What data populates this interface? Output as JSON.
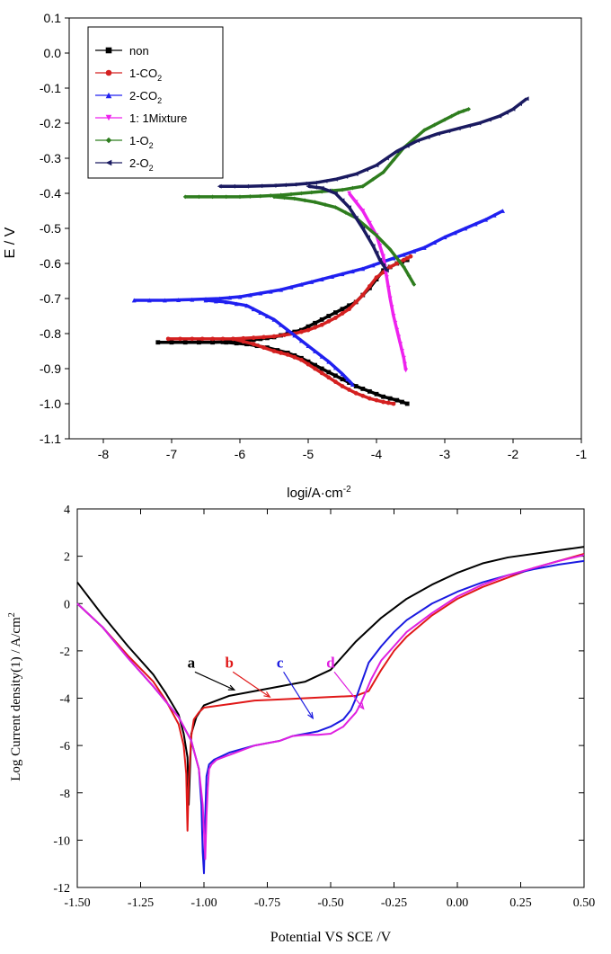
{
  "chart_data": [
    {
      "type": "line",
      "xlabel": "logi/A·cm",
      "xlabel_sup": "-2",
      "ylabel": "E / V",
      "xlim": [
        -8.5,
        -1
      ],
      "ylim": [
        -1.1,
        0.1
      ],
      "xticks": [
        "-8",
        "-7",
        "-6",
        "-5",
        "-4",
        "-3",
        "-2",
        "-1"
      ],
      "yticks": [
        "0.1",
        "0.0",
        "-0.1",
        "-0.2",
        "-0.3",
        "-0.4",
        "-0.5",
        "-0.6",
        "-0.7",
        "-0.8",
        "-0.9",
        "-1.0",
        "-1.1"
      ],
      "legend_position": "top-left",
      "series": [
        {
          "name": "non",
          "sub": "",
          "color": "#000000",
          "marker": "square",
          "x": [
            -7.2,
            -6.8,
            -6.4,
            -6.1,
            -5.9,
            -5.7,
            -5.5,
            -5.3,
            -5.1,
            -4.9,
            -4.7,
            -4.5,
            -4.3,
            -4.1,
            -3.9,
            -3.7,
            -3.55
          ],
          "y": [
            -0.825,
            -0.825,
            -0.825,
            -0.823,
            -0.82,
            -0.815,
            -0.81,
            -0.8,
            -0.79,
            -0.77,
            -0.75,
            -0.73,
            -0.71,
            -0.67,
            -0.62,
            -0.6,
            -0.59
          ],
          "x2": [
            -6.2,
            -5.9,
            -5.6,
            -5.3,
            -5.1,
            -4.9,
            -4.7,
            -4.5,
            -4.3,
            -4.1,
            -3.9,
            -3.7,
            -3.55
          ],
          "y2": [
            -0.825,
            -0.83,
            -0.84,
            -0.855,
            -0.87,
            -0.89,
            -0.91,
            -0.93,
            -0.95,
            -0.965,
            -0.98,
            -0.99,
            -1.0
          ]
        },
        {
          "name": "1-CO",
          "sub": "2",
          "color": "#d42020",
          "marker": "circle",
          "x": [
            -7.05,
            -6.7,
            -6.4,
            -6.1,
            -5.8,
            -5.5,
            -5.2,
            -5.0,
            -4.8,
            -4.6,
            -4.4,
            -4.2,
            -4.0,
            -3.8,
            -3.6,
            -3.5
          ],
          "y": [
            -0.815,
            -0.815,
            -0.815,
            -0.815,
            -0.812,
            -0.808,
            -0.8,
            -0.79,
            -0.775,
            -0.755,
            -0.73,
            -0.69,
            -0.64,
            -0.61,
            -0.59,
            -0.58
          ],
          "x2": [
            -6.1,
            -5.8,
            -5.5,
            -5.3,
            -5.1,
            -4.9,
            -4.7,
            -4.5,
            -4.3,
            -4.1,
            -3.9,
            -3.75
          ],
          "y2": [
            -0.815,
            -0.83,
            -0.85,
            -0.86,
            -0.875,
            -0.9,
            -0.925,
            -0.95,
            -0.97,
            -0.985,
            -0.995,
            -1.0
          ]
        },
        {
          "name": "2-CO",
          "sub": "2",
          "color": "#2020f0",
          "marker": "triangle-up",
          "x": [
            -7.55,
            -7.1,
            -6.7,
            -6.3,
            -6.0,
            -5.7,
            -5.4,
            -5.1,
            -4.8,
            -4.5,
            -4.2,
            -3.9,
            -3.6,
            -3.3,
            -3.0,
            -2.7,
            -2.4,
            -2.15
          ],
          "y": [
            -0.705,
            -0.705,
            -0.703,
            -0.7,
            -0.695,
            -0.685,
            -0.675,
            -0.66,
            -0.645,
            -0.63,
            -0.615,
            -0.595,
            -0.575,
            -0.555,
            -0.525,
            -0.5,
            -0.475,
            -0.45
          ],
          "x2": [
            -6.5,
            -6.2,
            -5.9,
            -5.7,
            -5.5,
            -5.3,
            -5.1,
            -4.9,
            -4.7,
            -4.5,
            -4.35
          ],
          "y2": [
            -0.705,
            -0.71,
            -0.72,
            -0.74,
            -0.76,
            -0.79,
            -0.82,
            -0.85,
            -0.88,
            -0.915,
            -0.945
          ]
        },
        {
          "name": "1:   1Mixture",
          "sub": "",
          "color": "#ee22ee",
          "marker": "triangle-down",
          "x": [
            -4.4,
            -4.2,
            -4.0,
            -3.9,
            -3.85,
            -3.8,
            -3.75,
            -3.7,
            -3.65,
            -3.6,
            -3.57
          ],
          "y": [
            -0.4,
            -0.45,
            -0.52,
            -0.58,
            -0.64,
            -0.7,
            -0.75,
            -0.79,
            -0.83,
            -0.87,
            -0.905
          ],
          "x2": [],
          "y2": []
        },
        {
          "name": "1-O",
          "sub": "2",
          "color": "#2e7d1e",
          "marker": "diamond",
          "x": [
            -6.8,
            -6.4,
            -6.0,
            -5.7,
            -5.4,
            -5.1,
            -4.8,
            -4.5,
            -4.2,
            -3.9,
            -3.6,
            -3.3,
            -3.0,
            -2.8,
            -2.65
          ],
          "y": [
            -0.41,
            -0.41,
            -0.41,
            -0.408,
            -0.405,
            -0.4,
            -0.395,
            -0.39,
            -0.38,
            -0.34,
            -0.27,
            -0.22,
            -0.19,
            -0.17,
            -0.16
          ],
          "x2": [
            -5.5,
            -5.2,
            -4.9,
            -4.6,
            -4.3,
            -4.0,
            -3.8,
            -3.6,
            -3.45
          ],
          "y2": [
            -0.41,
            -0.415,
            -0.425,
            -0.44,
            -0.47,
            -0.52,
            -0.56,
            -0.61,
            -0.66
          ]
        },
        {
          "name": "2-O",
          "sub": "2",
          "color": "#1a1a60",
          "marker": "triangle-left",
          "x": [
            -6.3,
            -5.9,
            -5.5,
            -5.2,
            -4.9,
            -4.6,
            -4.3,
            -4.0,
            -3.7,
            -3.4,
            -3.1,
            -2.8,
            -2.5,
            -2.2,
            -2.0,
            -1.8
          ],
          "y": [
            -0.38,
            -0.38,
            -0.378,
            -0.375,
            -0.37,
            -0.36,
            -0.345,
            -0.32,
            -0.28,
            -0.25,
            -0.23,
            -0.215,
            -0.2,
            -0.18,
            -0.16,
            -0.13
          ],
          "x2": [
            -5.0,
            -4.8,
            -4.6,
            -4.4,
            -4.2,
            -4.05,
            -3.95,
            -3.85
          ],
          "y2": [
            -0.38,
            -0.385,
            -0.4,
            -0.44,
            -0.5,
            -0.55,
            -0.59,
            -0.62
          ]
        }
      ]
    },
    {
      "type": "line",
      "xlabel": "Potential VS SCE /V",
      "ylabel": "Log Current density(1) / A/cm",
      "ylabel_sup": "2",
      "xlim": [
        -1.5,
        0.5
      ],
      "ylim": [
        -12,
        4
      ],
      "xticks": [
        "-1.50",
        "-1.25",
        "-1.00",
        "-0.75",
        "-0.50",
        "-0.25",
        "0.00",
        "0.25",
        "0.50"
      ],
      "yticks": [
        "4",
        "2",
        "0",
        "-2",
        "-4",
        "-6",
        "-8",
        "-10",
        "-12"
      ],
      "annotations": [
        {
          "text": "a",
          "color": "#000000",
          "x": -1.05,
          "y": -2.7,
          "ax": -0.88,
          "ay": -3.65
        },
        {
          "text": "b",
          "color": "#e01818",
          "x": -0.9,
          "y": -2.7,
          "ax": -0.74,
          "ay": -3.95
        },
        {
          "text": "c",
          "color": "#1a1ae0",
          "x": -0.7,
          "y": -2.7,
          "ax": -0.57,
          "ay": -4.85
        },
        {
          "text": "d",
          "color": "#e020e0",
          "x": -0.5,
          "y": -2.7,
          "ax": -0.37,
          "ay": -4.45
        }
      ],
      "series": [
        {
          "name": "a",
          "color": "#000000",
          "x": [
            -1.5,
            -1.4,
            -1.3,
            -1.2,
            -1.15,
            -1.1,
            -1.08,
            -1.065,
            -1.06,
            -1.05,
            -1.03,
            -1.0,
            -0.9,
            -0.8,
            -0.7,
            -0.6,
            -0.5,
            -0.45,
            -0.4,
            -0.3,
            -0.2,
            -0.1,
            0.0,
            0.1,
            0.2,
            0.3,
            0.4,
            0.5
          ],
          "y": [
            0.9,
            -0.5,
            -1.8,
            -3.0,
            -3.8,
            -4.7,
            -5.5,
            -6.5,
            -8.5,
            -5.5,
            -4.8,
            -4.3,
            -3.9,
            -3.7,
            -3.5,
            -3.3,
            -2.8,
            -2.2,
            -1.6,
            -0.6,
            0.2,
            0.8,
            1.3,
            1.7,
            1.95,
            2.1,
            2.25,
            2.4
          ]
        },
        {
          "name": "b",
          "color": "#e01818",
          "x": [
            -1.5,
            -1.4,
            -1.3,
            -1.2,
            -1.15,
            -1.1,
            -1.08,
            -1.07,
            -1.065,
            -1.06,
            -1.05,
            -1.04,
            -1.02,
            -1.0,
            -0.9,
            -0.8,
            -0.7,
            -0.6,
            -0.5,
            -0.4,
            -0.35,
            -0.3,
            -0.25,
            -0.2,
            -0.1,
            0.0,
            0.1,
            0.2,
            0.3,
            0.4,
            0.5
          ],
          "y": [
            0.0,
            -1.0,
            -2.2,
            -3.3,
            -4.1,
            -5.1,
            -6.0,
            -7.2,
            -9.6,
            -7.5,
            -5.6,
            -4.9,
            -4.6,
            -4.4,
            -4.25,
            -4.1,
            -4.05,
            -4.0,
            -3.95,
            -3.9,
            -3.7,
            -2.8,
            -2.0,
            -1.4,
            -0.5,
            0.2,
            0.7,
            1.1,
            1.5,
            1.8,
            2.1
          ]
        },
        {
          "name": "c",
          "color": "#1a1ae0",
          "x": [
            -1.5,
            -1.4,
            -1.3,
            -1.2,
            -1.1,
            -1.05,
            -1.02,
            -1.01,
            -1.005,
            -1.0,
            -0.995,
            -0.99,
            -0.98,
            -0.96,
            -0.9,
            -0.8,
            -0.7,
            -0.65,
            -0.6,
            -0.55,
            -0.5,
            -0.45,
            -0.42,
            -0.4,
            -0.38,
            -0.35,
            -0.3,
            -0.25,
            -0.2,
            -0.1,
            0.0,
            0.1,
            0.2,
            0.3,
            0.4,
            0.5
          ],
          "y": [
            0.0,
            -1.0,
            -2.3,
            -3.5,
            -4.8,
            -5.8,
            -7.0,
            -8.5,
            -10.5,
            -11.4,
            -9.0,
            -7.3,
            -6.8,
            -6.6,
            -6.3,
            -6.0,
            -5.8,
            -5.6,
            -5.5,
            -5.4,
            -5.2,
            -4.9,
            -4.5,
            -4.0,
            -3.4,
            -2.5,
            -1.8,
            -1.2,
            -0.7,
            0.0,
            0.5,
            0.9,
            1.2,
            1.45,
            1.65,
            1.8
          ]
        },
        {
          "name": "d",
          "color": "#e020e0",
          "x": [
            -1.5,
            -1.4,
            -1.3,
            -1.2,
            -1.1,
            -1.05,
            -1.02,
            -1.005,
            -0.995,
            -0.99,
            -0.985,
            -0.98,
            -0.97,
            -0.95,
            -0.9,
            -0.8,
            -0.7,
            -0.65,
            -0.6,
            -0.55,
            -0.5,
            -0.45,
            -0.4,
            -0.38,
            -0.36,
            -0.34,
            -0.32,
            -0.3,
            -0.25,
            -0.2,
            -0.1,
            0.0,
            0.1,
            0.2,
            0.3,
            0.4,
            0.5
          ],
          "y": [
            0.0,
            -1.0,
            -2.3,
            -3.5,
            -4.8,
            -5.8,
            -7.0,
            -8.5,
            -10.8,
            -9.0,
            -7.8,
            -7.0,
            -6.8,
            -6.6,
            -6.4,
            -6.0,
            -5.8,
            -5.6,
            -5.55,
            -5.55,
            -5.5,
            -5.2,
            -4.6,
            -4.2,
            -3.7,
            -3.2,
            -2.8,
            -2.4,
            -1.8,
            -1.2,
            -0.4,
            0.3,
            0.8,
            1.2,
            1.5,
            1.8,
            2.05
          ]
        }
      ]
    }
  ]
}
